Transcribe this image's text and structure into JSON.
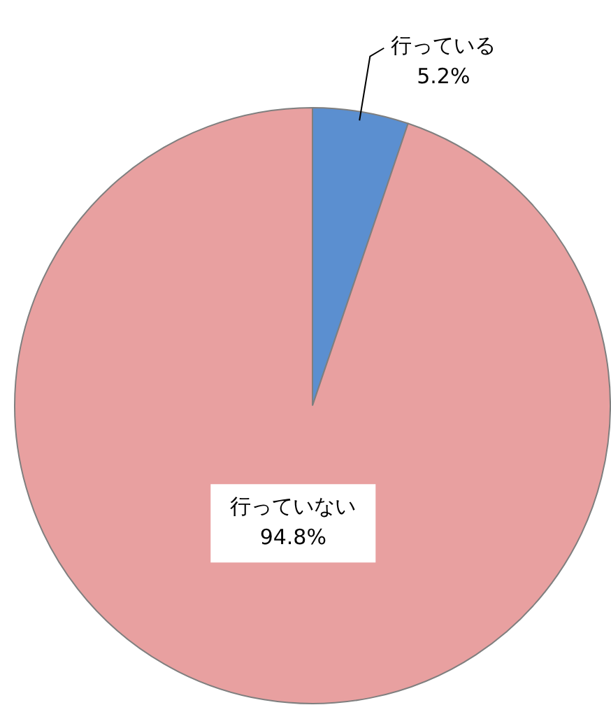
{
  "chart_data": {
    "type": "pie",
    "categories": [
      "行っている",
      "行っていない"
    ],
    "values": [
      5.2,
      94.8
    ],
    "value_labels": [
      "5.2%",
      "94.8%"
    ],
    "colors": [
      "#5b8fd0",
      "#e8a0a0"
    ],
    "legend": false
  }
}
